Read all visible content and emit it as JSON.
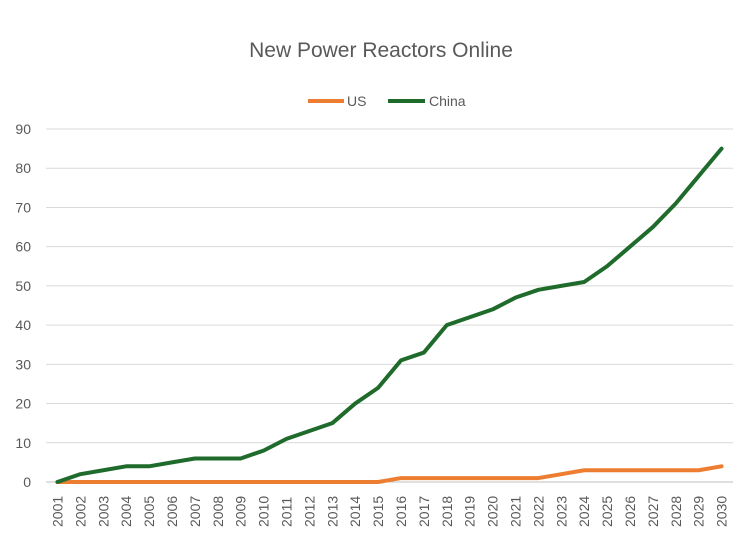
{
  "chart_data": {
    "type": "line",
    "title": "New Power Reactors Online",
    "xlabel": "",
    "ylabel": "",
    "ylim": [
      0,
      90
    ],
    "yticks": [
      "0",
      "10",
      "20",
      "30",
      "40",
      "50",
      "60",
      "70",
      "80",
      "90"
    ],
    "grid": "horizontal",
    "legend_position": "top",
    "x": [
      "2001",
      "2002",
      "2003",
      "2004",
      "2005",
      "2006",
      "2007",
      "2008",
      "2009",
      "2010",
      "2011",
      "2012",
      "2013",
      "2014",
      "2015",
      "2016",
      "2017",
      "2018",
      "2019",
      "2020",
      "2021",
      "2022",
      "2023",
      "2024",
      "2025",
      "2026",
      "2027",
      "2028",
      "2029",
      "2030"
    ],
    "series": [
      {
        "name": "US",
        "color": "#ED7D31",
        "values": [
          0,
          0,
          0,
          0,
          0,
          0,
          0,
          0,
          0,
          0,
          0,
          0,
          0,
          0,
          0,
          1,
          1,
          1,
          1,
          1,
          1,
          1,
          2,
          3,
          3,
          3,
          3,
          3,
          3,
          4
        ]
      },
      {
        "name": "China",
        "color": "#1F6B2C",
        "values": [
          0,
          2,
          3,
          4,
          4,
          5,
          6,
          6,
          6,
          8,
          11,
          13,
          15,
          20,
          24,
          31,
          33,
          40,
          42,
          44,
          47,
          49,
          50,
          51,
          55,
          60,
          65,
          71,
          78,
          85
        ]
      }
    ]
  }
}
